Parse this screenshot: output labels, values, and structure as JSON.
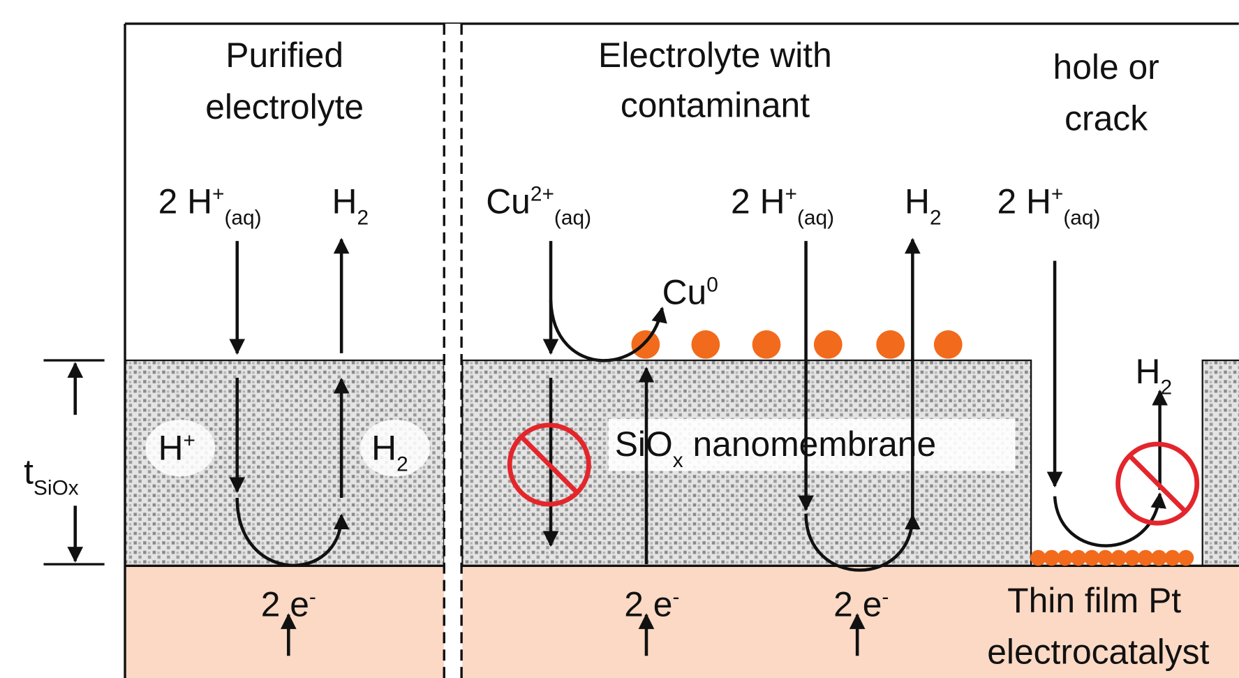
{
  "panels": [
    {
      "title_lines": [
        "Purified",
        "electrolyte"
      ]
    },
    {
      "title_lines": [
        "Electrolyte with",
        "contaminant"
      ]
    },
    {
      "title_lines": [
        "hole or",
        "crack"
      ]
    }
  ],
  "species": [
    {
      "text": "2 H",
      "sup": "+",
      "sub": "(aq)"
    },
    {
      "text": "H",
      "sub": "2"
    },
    {
      "text": "Cu",
      "sup": "2+",
      "sub": "(aq)"
    },
    {
      "text": "2 H",
      "sup": "+",
      "sub": "(aq)"
    },
    {
      "text": "H",
      "sub": "2"
    },
    {
      "text": "2 H",
      "sup": "+",
      "sub": "(aq)"
    },
    {
      "text": "Cu",
      "sup": "0"
    },
    {
      "text": "H",
      "sub": "2"
    },
    {
      "text": "H",
      "sup": "+"
    },
    {
      "text": "H",
      "sub": "2"
    }
  ],
  "membrane_label": {
    "text": "SiO",
    "sub": "x",
    "tail": " nanomembrane"
  },
  "thickness_label": {
    "text": "t",
    "sub": "SiOx"
  },
  "electrons": [
    {
      "text": "2 e",
      "sup": "-"
    },
    {
      "text": "2 e",
      "sup": "-"
    },
    {
      "text": "2 e",
      "sup": "-"
    }
  ],
  "catalyst_label_lines": [
    "Thin film Pt",
    "electrocatalyst"
  ]
}
